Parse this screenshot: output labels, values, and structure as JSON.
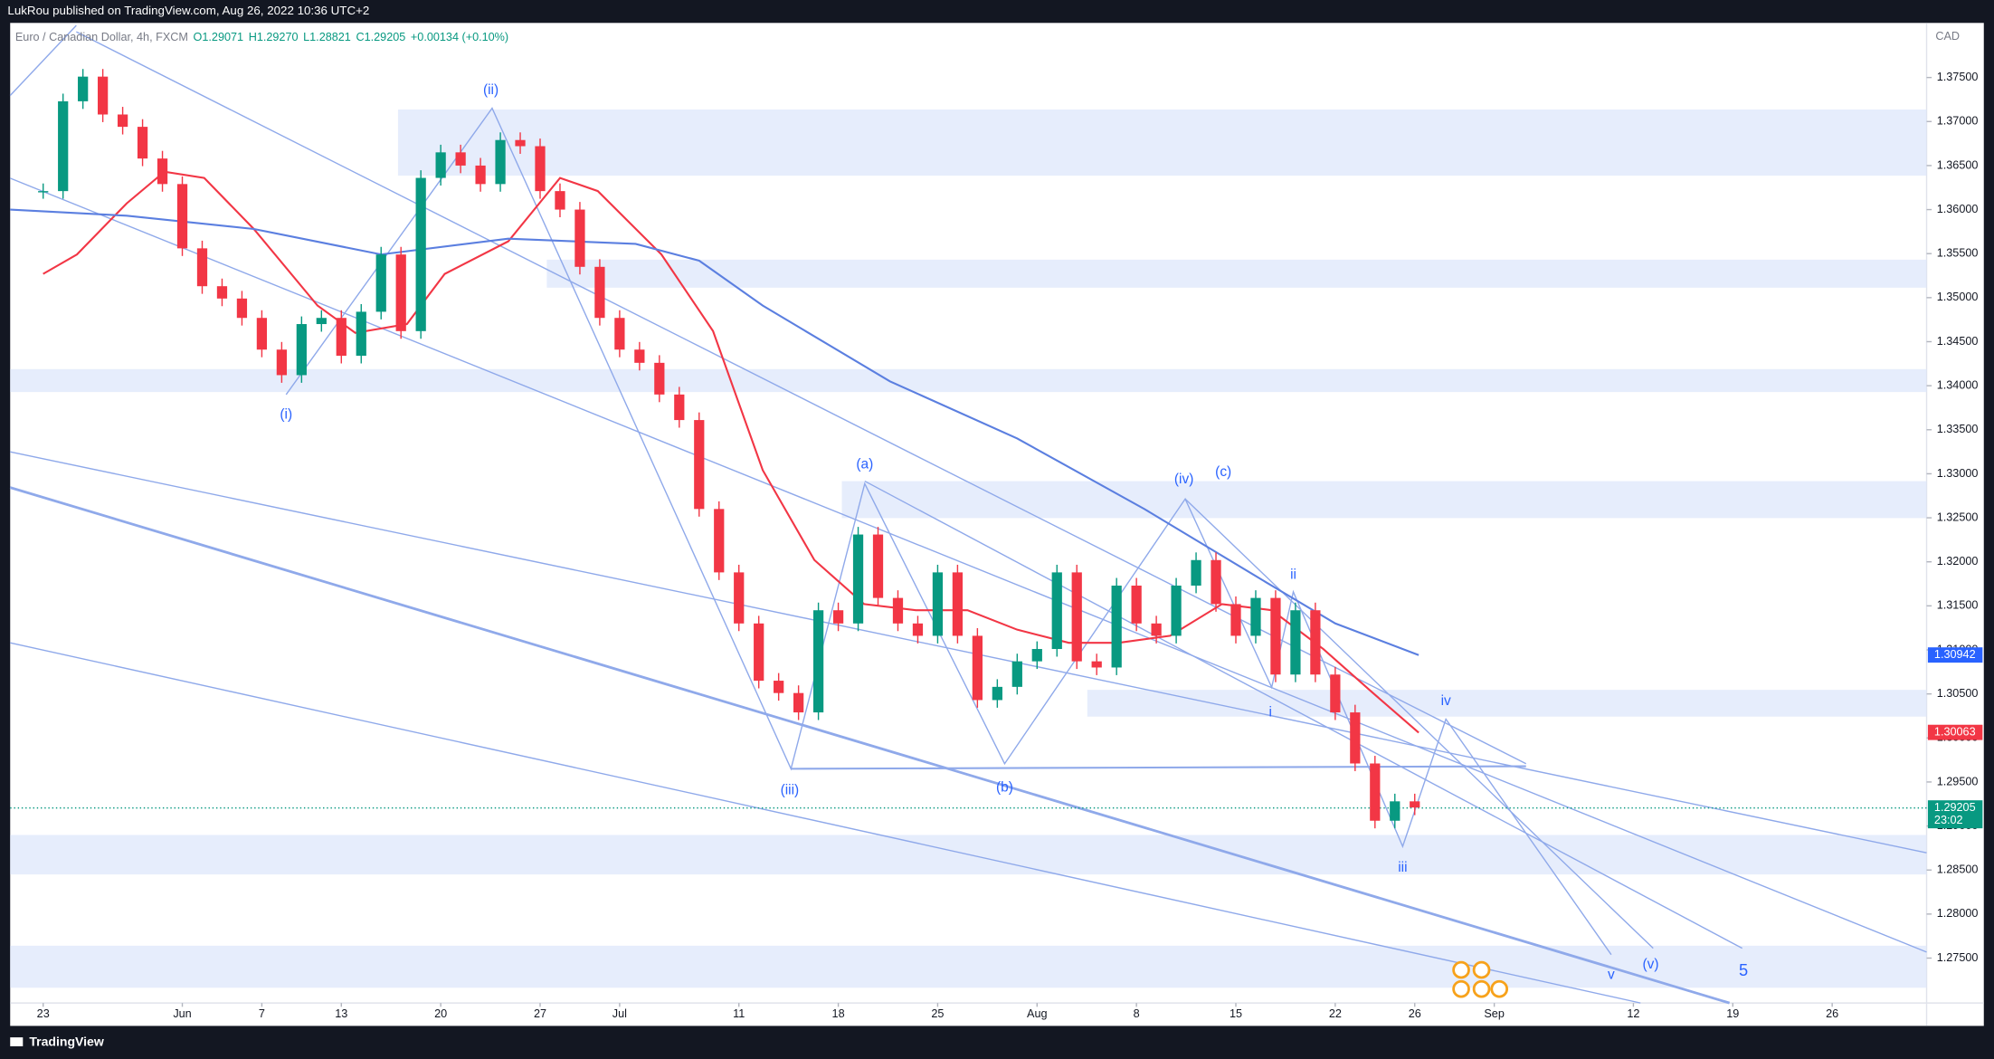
{
  "header": {
    "publisher": "LukRou published on TradingView.com, Aug 26, 2022 10:36 UTC+2"
  },
  "footer": {
    "brand": "TradingView"
  },
  "chart_data": {
    "type": "candlestick",
    "symbol": "Euro / Canadian Dollar, 4h, FXCM",
    "ohlc": [
      "O1.29071",
      "H1.29270",
      "L1.28821",
      "C1.29205",
      "+0.00134 (+0.10%)"
    ],
    "currency": "CAD",
    "xlim": [
      -1.66,
      94.75
    ],
    "xticks": [
      {
        "value": 0,
        "label": "23"
      },
      {
        "value": 7,
        "label": "Jun"
      },
      {
        "value": 11,
        "label": "7"
      },
      {
        "value": 15,
        "label": "13"
      },
      {
        "value": 20,
        "label": "20"
      },
      {
        "value": 25,
        "label": "27"
      },
      {
        "value": 29,
        "label": "Jul"
      },
      {
        "value": 35,
        "label": "11"
      },
      {
        "value": 40,
        "label": "18"
      },
      {
        "value": 45,
        "label": "25"
      },
      {
        "value": 50,
        "label": "Aug"
      },
      {
        "value": 55,
        "label": "8"
      },
      {
        "value": 60,
        "label": "15"
      },
      {
        "value": 65,
        "label": "22"
      },
      {
        "value": 69,
        "label": "26"
      },
      {
        "value": 73,
        "label": "Sep"
      },
      {
        "value": 80,
        "label": "12"
      },
      {
        "value": 85,
        "label": "19"
      },
      {
        "value": 90,
        "label": "26"
      }
    ],
    "ylim": [
      1.2699,
      1.3812
    ],
    "yticks": [
      {
        "value": 1.275,
        "label": "1.27500"
      },
      {
        "value": 1.28,
        "label": "1.28000"
      },
      {
        "value": 1.285,
        "label": "1.28500"
      },
      {
        "value": 1.29,
        "label": "1.29000"
      },
      {
        "value": 1.295,
        "label": "1.29500"
      },
      {
        "value": 1.3,
        "label": "1.30000"
      },
      {
        "value": 1.305,
        "label": "1.30500"
      },
      {
        "value": 1.31,
        "label": "1.31000"
      },
      {
        "value": 1.315,
        "label": "1.31500"
      },
      {
        "value": 1.32,
        "label": "1.32000"
      },
      {
        "value": 1.325,
        "label": "1.32500"
      },
      {
        "value": 1.33,
        "label": "1.33000"
      },
      {
        "value": 1.335,
        "label": "1.33500"
      },
      {
        "value": 1.34,
        "label": "1.34000"
      },
      {
        "value": 1.345,
        "label": "1.34500"
      },
      {
        "value": 1.35,
        "label": "1.35000"
      },
      {
        "value": 1.355,
        "label": "1.35500"
      },
      {
        "value": 1.36,
        "label": "1.36000"
      },
      {
        "value": 1.365,
        "label": "1.36500"
      },
      {
        "value": 1.37,
        "label": "1.37000"
      },
      {
        "value": 1.375,
        "label": "1.37500"
      }
    ],
    "series": [
      {
        "color": "#089981",
        "down_color": "#f23645",
        "x": [
          0,
          1,
          2,
          3,
          4,
          5,
          6,
          7,
          8,
          9,
          10,
          11,
          12,
          13,
          14,
          15,
          16,
          17,
          18,
          19,
          20,
          21,
          22,
          23,
          24,
          25,
          26,
          27,
          28,
          29,
          30,
          31,
          32,
          33,
          34,
          35,
          36,
          37,
          38,
          39,
          40,
          41,
          42,
          43,
          44,
          45,
          46,
          47,
          48,
          49,
          50,
          51,
          52,
          53,
          54,
          55,
          56,
          57,
          58,
          59,
          60,
          61,
          62,
          63,
          64,
          65,
          66,
          67,
          68,
          69
        ],
        "values": [
          1.3621,
          1.3723,
          1.3751,
          1.3708,
          1.3694,
          1.3658,
          1.3629,
          1.3556,
          1.3513,
          1.3499,
          1.3477,
          1.3441,
          1.3412,
          1.347,
          1.3477,
          1.3434,
          1.3484,
          1.3549,
          1.3462,
          1.3636,
          1.3665,
          1.365,
          1.3629,
          1.3679,
          1.3672,
          1.3621,
          1.36,
          1.3535,
          1.3477,
          1.3441,
          1.3426,
          1.339,
          1.3361,
          1.326,
          1.3188,
          1.313,
          1.3065,
          1.3051,
          1.3029,
          1.3145,
          1.313,
          1.3231,
          1.3159,
          1.313,
          1.3116,
          1.3188,
          1.3116,
          1.3043,
          1.3058,
          1.3087,
          1.3101,
          1.3188,
          1.3087,
          1.308,
          1.3173,
          1.313,
          1.3116,
          1.3173,
          1.3202,
          1.3152,
          1.3116,
          1.3159,
          1.3072,
          1.3145,
          1.3072,
          1.3029,
          1.2971,
          1.2906,
          1.2928,
          1.2921
        ],
        "last": 1.29205
      },
      {
        "color": "#f23645",
        "x": [
          0,
          1.7,
          4.2,
          6.1,
          8.1,
          10.6,
          13.8,
          15.7,
          18.3,
          20.2,
          23.4,
          26,
          27.9,
          31.1,
          33.7,
          36.2,
          38.8,
          41.3,
          43.9,
          46.5,
          49,
          51.6,
          54.1,
          56.7,
          59.3,
          61.8,
          64.4,
          66.9,
          69.2
        ],
        "values": [
          1.3527,
          1.3549,
          1.3607,
          1.3643,
          1.3636,
          1.3578,
          1.3491,
          1.346,
          1.347,
          1.3527,
          1.3564,
          1.3636,
          1.3621,
          1.3549,
          1.3462,
          1.3304,
          1.3202,
          1.3152,
          1.3145,
          1.3145,
          1.3123,
          1.3108,
          1.3108,
          1.3116,
          1.3152,
          1.3145,
          1.3101,
          1.3051,
          1.3006
        ],
        "last": 1.30063
      },
      {
        "color": "#5b7fe0",
        "x": [
          -1.66,
          4.2,
          10.6,
          17,
          23.4,
          29.8,
          33,
          36.2,
          42.6,
          49,
          55.4,
          61.8,
          65,
          69.2
        ],
        "values": [
          1.36,
          1.3593,
          1.3578,
          1.3549,
          1.3567,
          1.3561,
          1.3542,
          1.3491,
          1.3405,
          1.334,
          1.326,
          1.3173,
          1.313,
          1.3094
        ],
        "last": 1.30942
      }
    ],
    "countdown": "23:02",
    "annotations": [
      "(i)",
      "(ii)",
      "(iii)",
      "(a)",
      "(b)",
      "(iv)",
      "(c)",
      "ii",
      "i",
      "iv",
      "iii",
      "v",
      "(v)",
      "5"
    ]
  }
}
